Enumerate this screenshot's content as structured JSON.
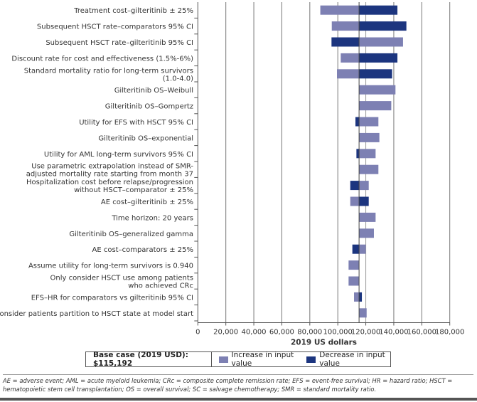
{
  "chart_data": {
    "type": "bar",
    "orientation": "horizontal-tornado",
    "xlabel": "2019 US dollars",
    "xlim": [
      0,
      180000
    ],
    "xticks": [
      "0",
      "20,000",
      "40,000",
      "60,000",
      "80,000",
      "100,000",
      "120,000",
      "140,000",
      "160,000",
      "180,000"
    ],
    "base_value": 115192,
    "grid": true,
    "colors": {
      "increase": "#7d80b3",
      "decrease": "#1c357f"
    },
    "rows": [
      {
        "label": "Treatment cost–gilteritinib ± 25%",
        "increase": 87500,
        "decrease": 142600
      },
      {
        "label": "Subsequent HSCT rate–comparators 95% CI",
        "increase": 95700,
        "decrease": 149000
      },
      {
        "label": "Subsequent HSCT rate–gilteritinib 95% CI",
        "increase": 146600,
        "decrease": 95500
      },
      {
        "label": "Discount rate for cost and effectiveness (1.5%-6%)",
        "increase": 102100,
        "decrease": 142600
      },
      {
        "label": "Standard mortality ratio for long-term survivors\n(1.0-4.0)",
        "increase": 99400,
        "decrease": 138800
      },
      {
        "label": "Gilteritinib OS–Weibull",
        "increase": 141200,
        "decrease": 115192
      },
      {
        "label": "Gilteritinib OS–Gompertz",
        "increase": 138200,
        "decrease": 115192
      },
      {
        "label": "Utility for EFS with HSCT 95% CI",
        "increase": 129000,
        "decrease": 112600
      },
      {
        "label": "Gilteritinib OS–exponential",
        "increase": 129700,
        "decrease": 115192
      },
      {
        "label": "Utility for AML long-term survivors 95% CI",
        "increase": 127000,
        "decrease": 113300
      },
      {
        "label": "Use parametric extrapolation instead of SMR-\nadjusted mortality rate starting from month 37",
        "increase": 129000,
        "decrease": 115192
      },
      {
        "label": "Hospitalization cost before relapse/progression\nwithout HSCT–comparator ± 25%",
        "increase": 122100,
        "decrease": 108900
      },
      {
        "label": "AE cost–gilteritinib ± 25%",
        "increase": 108900,
        "decrease": 122100
      },
      {
        "label": "Time horizon: 20 years",
        "increase": 127000,
        "decrease": 115192
      },
      {
        "label": "Gilteritinib OS–generalized gamma",
        "increase": 125800,
        "decrease": 115192
      },
      {
        "label": "AE cost–comparators ± 25%",
        "increase": 120000,
        "decrease": 110400
      },
      {
        "label": "Assume utility for long-term survivors is 0.940",
        "increase": 107700,
        "decrease": 115192
      },
      {
        "label": "Only consider HSCT use among patients\nwho achieved CRc",
        "increase": 107700,
        "decrease": 115192
      },
      {
        "label": "EFS–HR for comparators vs gilteritinib 95% CI",
        "increase": 111600,
        "decrease": 117200
      },
      {
        "label": "Consider patients partition to HSCT state at model start",
        "increase": 120600,
        "decrease": 115192
      }
    ]
  },
  "legend": {
    "base_case": "Base case (2019 USD): $115,192",
    "increase": "Increase in input value",
    "decrease": "Decrease in input value"
  },
  "footnote": "AE = adverse event; AML = acute myeloid leukemia; CRc = composite complete remission rate; EFS = event-free survival; HR = hazard ratio; HSCT = hematopoietic stem cell transplantation; OS = overall survival; SC = salvage chemotherapy; SMR = standard mortality ratio."
}
